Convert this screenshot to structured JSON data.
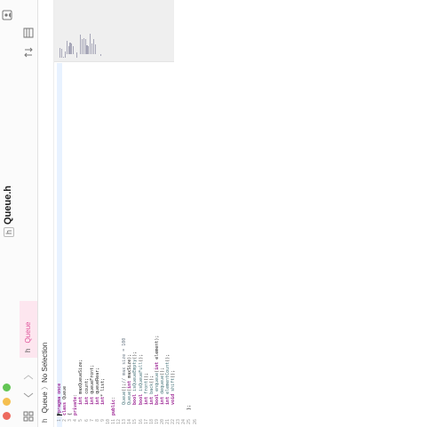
{
  "window": {
    "file_icon": "h",
    "title": "Queue.h"
  },
  "tab": {
    "icon": "h",
    "label": "Queue"
  },
  "jump_bar": {
    "icon": "h",
    "file": "Queue",
    "separator": "〉",
    "selection": "No Selection"
  },
  "editor": {
    "lines": [
      {
        "number": "1",
        "text": "#pragma once"
      },
      {
        "number": "2",
        "text": "class Queue"
      },
      {
        "number": "3",
        "text": "{"
      },
      {
        "number": "4",
        "text": "private:"
      },
      {
        "number": "5",
        "text": "    int maxQueueSize;"
      },
      {
        "number": "6",
        "text": "    int count;"
      },
      {
        "number": "7",
        "text": "    int queueFront;"
      },
      {
        "number": "8",
        "text": "    int queueRear;"
      },
      {
        "number": "9",
        "text": "    int* list;"
      },
      {
        "number": "10",
        "text": ""
      },
      {
        "number": "11",
        "text": "public:"
      },
      {
        "number": "12",
        "text": ""
      },
      {
        "number": "13",
        "text": "    Queue();// max size = 100"
      },
      {
        "number": "14",
        "text": "    Queue(int maxSize);"
      },
      {
        "number": "15",
        "text": "    bool isQueueEmpty();"
      },
      {
        "number": "16",
        "text": "    bool isQueueFull();"
      },
      {
        "number": "17",
        "text": "    int front();"
      },
      {
        "number": "18",
        "text": "    int back();"
      },
      {
        "number": "19",
        "text": "    bool enqueue(int element);"
      },
      {
        "number": "20",
        "text": "    int dequeue();"
      },
      {
        "number": "21",
        "text": "    int elementCount();"
      },
      {
        "number": "22",
        "text": "    void shift();"
      },
      {
        "number": "23",
        "text": ""
      },
      {
        "number": "24",
        "text": ""
      },
      {
        "number": "25",
        "text": "  };"
      },
      {
        "number": "26",
        "text": ""
      }
    ]
  }
}
